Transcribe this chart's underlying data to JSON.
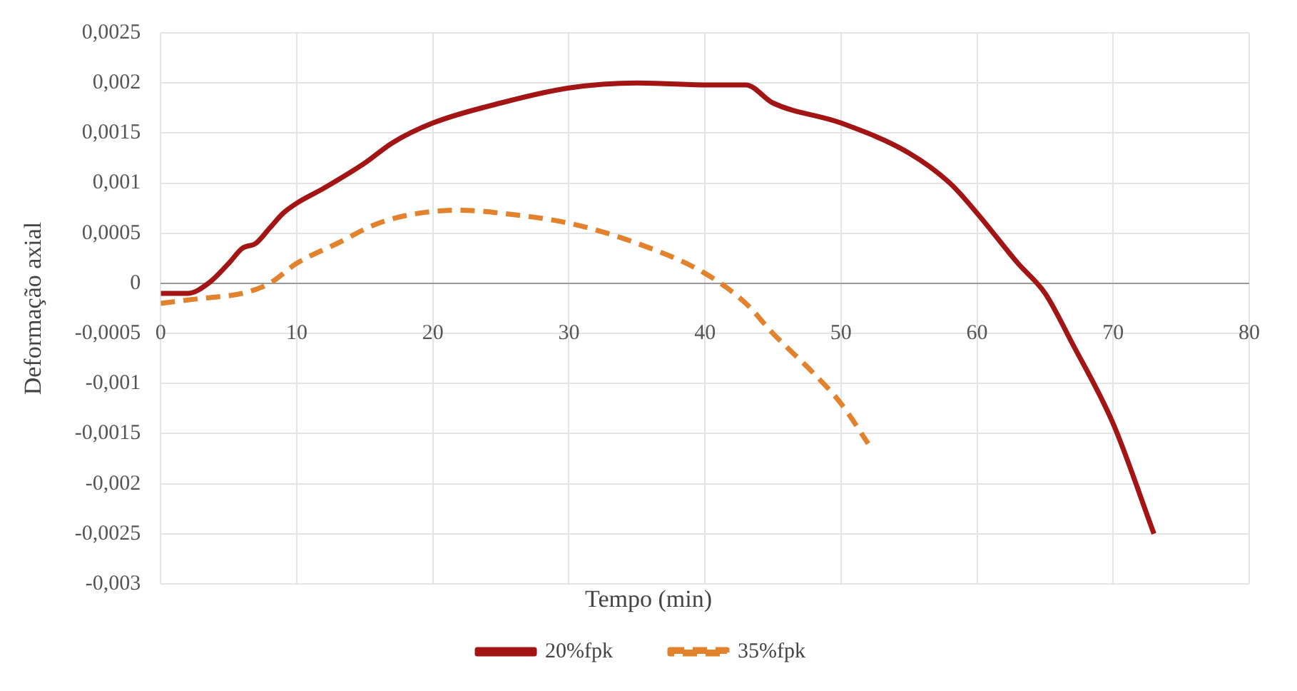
{
  "chart_data": {
    "type": "line",
    "xlabel": "Tempo (min)",
    "ylabel": "Deformação axial",
    "xlim": [
      0,
      80
    ],
    "xticks": [
      0,
      10,
      20,
      30,
      40,
      50,
      60,
      70,
      80
    ],
    "ylim": [
      -0.003,
      0.0025
    ],
    "yticks": [
      {
        "value": -0.003,
        "label": "-0,003"
      },
      {
        "value": -0.0025,
        "label": "-0,0025"
      },
      {
        "value": -0.002,
        "label": "-0,002"
      },
      {
        "value": -0.0015,
        "label": "-0,0015"
      },
      {
        "value": -0.001,
        "label": "-0,001"
      },
      {
        "value": -0.0005,
        "label": "-0,0005"
      },
      {
        "value": 0,
        "label": "0"
      },
      {
        "value": 0.0005,
        "label": "0,0005"
      },
      {
        "value": 0.001,
        "label": "0,001"
      },
      {
        "value": 0.0015,
        "label": "0,0015"
      },
      {
        "value": 0.002,
        "label": "0,002"
      },
      {
        "value": 0.0025,
        "label": "0,0025"
      }
    ],
    "grid": true,
    "legend": "bottom",
    "marker": "none",
    "series": [
      {
        "name": "20%fpk",
        "color": "#a31515",
        "line_style": "solid",
        "x": [
          0,
          2,
          3.5,
          5,
          6,
          7,
          8,
          9,
          10,
          12,
          15,
          17,
          20,
          25,
          30,
          35,
          40,
          43,
          45,
          50,
          55,
          58,
          60,
          63,
          65,
          67,
          70,
          73
        ],
        "values": [
          -0.0001,
          -0.0001,
          0,
          0.0002,
          0.00035,
          0.0004,
          0.00055,
          0.0007,
          0.0008,
          0.00095,
          0.0012,
          0.0014,
          0.0016,
          0.0018,
          0.00195,
          0.002,
          0.00198,
          0.00198,
          0.0018,
          0.0016,
          0.0013,
          0.001,
          0.0007,
          0.0002,
          -0.0001,
          -0.0006,
          -0.0014,
          -0.0025
        ]
      },
      {
        "name": "35%fpk",
        "color": "#e2822c",
        "line_style": "dashed",
        "x": [
          0,
          3,
          6,
          8,
          10,
          13,
          16,
          19,
          22,
          25,
          30,
          35,
          40,
          43,
          45,
          48,
          50,
          52
        ],
        "values": [
          -0.0002,
          -0.00015,
          -0.0001,
          0,
          0.0002,
          0.0004,
          0.0006,
          0.0007,
          0.00073,
          0.0007,
          0.0006,
          0.0004,
          0.0001,
          -0.0002,
          -0.0005,
          -0.0009,
          -0.0012,
          -0.0016
        ]
      }
    ]
  }
}
